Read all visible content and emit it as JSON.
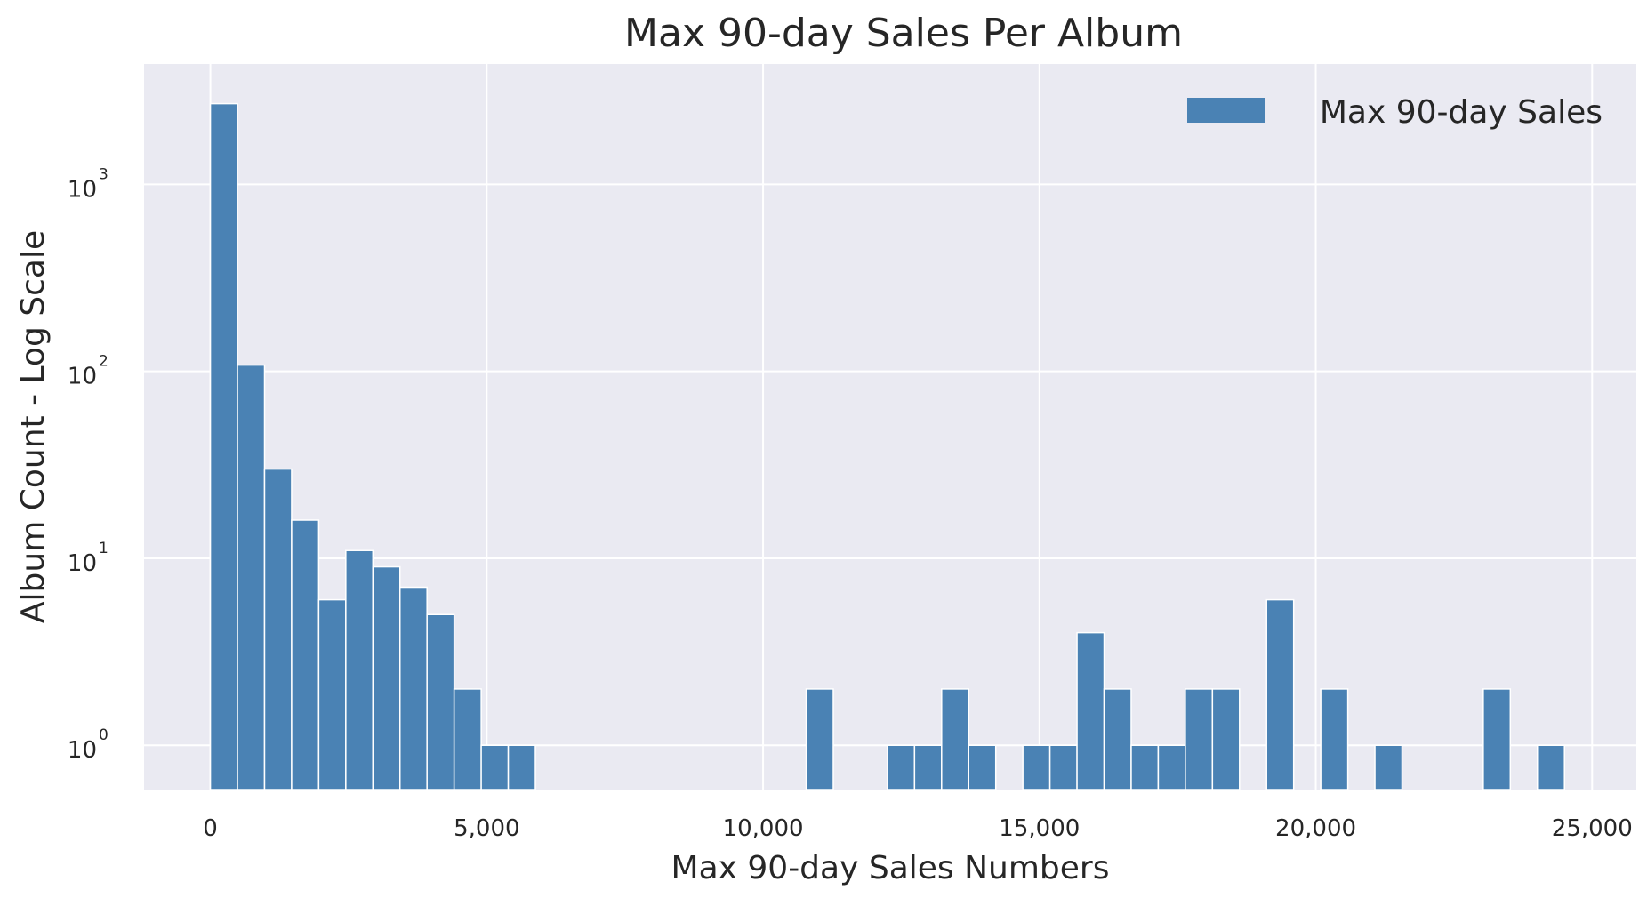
{
  "chart_data": {
    "type": "bar",
    "title": "Max 90-day Sales Per Album",
    "xlabel": "Max 90-day Sales Numbers",
    "ylabel": "Album Count - Log Scale",
    "yscale": "log",
    "xlim": [
      -1200,
      25800
    ],
    "ylim": [
      0.58,
      4400
    ],
    "grid": true,
    "legend": {
      "label": "Max 90-day Sales",
      "position": "top-right"
    },
    "colors": {
      "bar": "#4a82b4",
      "plot_bg": "#eaeaf2",
      "grid": "#ffffff"
    },
    "bin_width": 490,
    "x_ticks": [
      {
        "value": 0,
        "label": "0"
      },
      {
        "value": 5000,
        "label": "5,000"
      },
      {
        "value": 10000,
        "label": "10,000"
      },
      {
        "value": 15000,
        "label": "15,000"
      },
      {
        "value": 20000,
        "label": "20,000"
      },
      {
        "value": 25000,
        "label": "25,000"
      }
    ],
    "y_ticks": [
      {
        "value": 1,
        "base": "10",
        "exp": "0"
      },
      {
        "value": 10,
        "base": "10",
        "exp": "1"
      },
      {
        "value": 100,
        "base": "10",
        "exp": "2"
      },
      {
        "value": 1000,
        "base": "10",
        "exp": "3"
      }
    ],
    "bins": [
      {
        "x": 0,
        "count": 2700
      },
      {
        "x": 490,
        "count": 108
      },
      {
        "x": 980,
        "count": 30
      },
      {
        "x": 1470,
        "count": 16
      },
      {
        "x": 1960,
        "count": 6
      },
      {
        "x": 2450,
        "count": 11
      },
      {
        "x": 2940,
        "count": 9
      },
      {
        "x": 3430,
        "count": 7
      },
      {
        "x": 3920,
        "count": 5
      },
      {
        "x": 4410,
        "count": 2
      },
      {
        "x": 4900,
        "count": 1
      },
      {
        "x": 5390,
        "count": 1
      },
      {
        "x": 10780,
        "count": 2
      },
      {
        "x": 12250,
        "count": 1
      },
      {
        "x": 12740,
        "count": 1
      },
      {
        "x": 13230,
        "count": 2
      },
      {
        "x": 13720,
        "count": 1
      },
      {
        "x": 14700,
        "count": 1
      },
      {
        "x": 15190,
        "count": 1
      },
      {
        "x": 15680,
        "count": 4
      },
      {
        "x": 16170,
        "count": 2
      },
      {
        "x": 16660,
        "count": 1
      },
      {
        "x": 17150,
        "count": 1
      },
      {
        "x": 17640,
        "count": 2
      },
      {
        "x": 18130,
        "count": 2
      },
      {
        "x": 19110,
        "count": 6
      },
      {
        "x": 20090,
        "count": 2
      },
      {
        "x": 21070,
        "count": 1
      },
      {
        "x": 23030,
        "count": 2
      },
      {
        "x": 24010,
        "count": 1
      }
    ]
  }
}
